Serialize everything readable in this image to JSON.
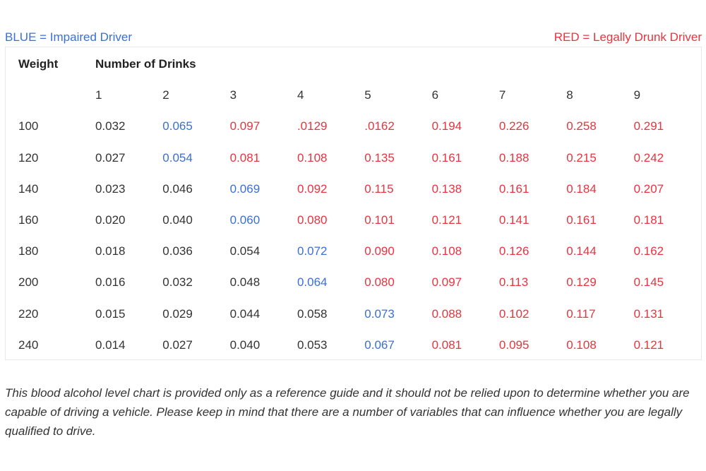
{
  "legend": {
    "blue_label": "BLUE = Impaired Driver",
    "red_label": "RED = Legally Drunk Driver",
    "blue_color": "#3a6fd8",
    "red_color": "#e8343f"
  },
  "table": {
    "weight_header": "Weight",
    "drinks_header": "Number of Drinks",
    "drink_numbers": [
      "1",
      "2",
      "3",
      "4",
      "5",
      "6",
      "7",
      "8",
      "9"
    ],
    "rows": [
      {
        "weight": "100",
        "cells": [
          {
            "v": "0.032",
            "s": "plain"
          },
          {
            "v": "0.065",
            "s": "blue"
          },
          {
            "v": "0.097",
            "s": "red"
          },
          {
            "v": ".0129",
            "s": "red"
          },
          {
            "v": ".0162",
            "s": "red"
          },
          {
            "v": "0.194",
            "s": "red"
          },
          {
            "v": "0.226",
            "s": "red"
          },
          {
            "v": "0.258",
            "s": "red"
          },
          {
            "v": "0.291",
            "s": "red"
          }
        ]
      },
      {
        "weight": "120",
        "cells": [
          {
            "v": "0.027",
            "s": "plain"
          },
          {
            "v": "0.054",
            "s": "blue"
          },
          {
            "v": "0.081",
            "s": "red"
          },
          {
            "v": "0.108",
            "s": "red"
          },
          {
            "v": "0.135",
            "s": "red"
          },
          {
            "v": "0.161",
            "s": "red"
          },
          {
            "v": "0.188",
            "s": "red"
          },
          {
            "v": "0.215",
            "s": "red"
          },
          {
            "v": "0.242",
            "s": "red"
          }
        ]
      },
      {
        "weight": "140",
        "cells": [
          {
            "v": "0.023",
            "s": "plain"
          },
          {
            "v": "0.046",
            "s": "plain"
          },
          {
            "v": "0.069",
            "s": "blue"
          },
          {
            "v": "0.092",
            "s": "red"
          },
          {
            "v": "0.115",
            "s": "red"
          },
          {
            "v": "0.138",
            "s": "red"
          },
          {
            "v": "0.161",
            "s": "red"
          },
          {
            "v": "0.184",
            "s": "red"
          },
          {
            "v": "0.207",
            "s": "red"
          }
        ]
      },
      {
        "weight": "160",
        "cells": [
          {
            "v": "0.020",
            "s": "plain"
          },
          {
            "v": "0.040",
            "s": "plain"
          },
          {
            "v": "0.060",
            "s": "blue"
          },
          {
            "v": "0.080",
            "s": "red"
          },
          {
            "v": "0.101",
            "s": "red"
          },
          {
            "v": "0.121",
            "s": "red"
          },
          {
            "v": "0.141",
            "s": "red"
          },
          {
            "v": "0.161",
            "s": "red"
          },
          {
            "v": "0.181",
            "s": "red"
          }
        ]
      },
      {
        "weight": "180",
        "cells": [
          {
            "v": "0.018",
            "s": "plain"
          },
          {
            "v": "0.036",
            "s": "plain"
          },
          {
            "v": "0.054",
            "s": "plain"
          },
          {
            "v": "0.072",
            "s": "blue"
          },
          {
            "v": "0.090",
            "s": "red"
          },
          {
            "v": "0.108",
            "s": "red"
          },
          {
            "v": "0.126",
            "s": "red"
          },
          {
            "v": "0.144",
            "s": "red"
          },
          {
            "v": "0.162",
            "s": "red"
          }
        ]
      },
      {
        "weight": "200",
        "cells": [
          {
            "v": "0.016",
            "s": "plain"
          },
          {
            "v": "0.032",
            "s": "plain"
          },
          {
            "v": "0.048",
            "s": "plain"
          },
          {
            "v": "0.064",
            "s": "blue"
          },
          {
            "v": "0.080",
            "s": "red"
          },
          {
            "v": "0.097",
            "s": "red"
          },
          {
            "v": "0.113",
            "s": "red"
          },
          {
            "v": "0.129",
            "s": "red"
          },
          {
            "v": "0.145",
            "s": "red"
          }
        ]
      },
      {
        "weight": "220",
        "cells": [
          {
            "v": "0.015",
            "s": "plain"
          },
          {
            "v": "0.029",
            "s": "plain"
          },
          {
            "v": "0.044",
            "s": "plain"
          },
          {
            "v": "0.058",
            "s": "plain"
          },
          {
            "v": "0.073",
            "s": "blue"
          },
          {
            "v": "0.088",
            "s": "red"
          },
          {
            "v": "0.102",
            "s": "red"
          },
          {
            "v": "0.117",
            "s": "red"
          },
          {
            "v": "0.131",
            "s": "red"
          }
        ]
      },
      {
        "weight": "240",
        "cells": [
          {
            "v": "0.014",
            "s": "plain"
          },
          {
            "v": "0.027",
            "s": "plain"
          },
          {
            "v": "0.040",
            "s": "plain"
          },
          {
            "v": "0.053",
            "s": "plain"
          },
          {
            "v": "0.067",
            "s": "blue"
          },
          {
            "v": "0.081",
            "s": "red"
          },
          {
            "v": "0.095",
            "s": "red"
          },
          {
            "v": "0.108",
            "s": "red"
          },
          {
            "v": "0.121",
            "s": "red"
          }
        ]
      }
    ]
  },
  "disclaimer": "This blood alcohol level chart is provided only as a reference guide and it should not be relied upon to determine whether you are capable of driving a vehicle. Please keep in mind that there are a number of variables that can influence whether you are legally qualified to drive."
}
